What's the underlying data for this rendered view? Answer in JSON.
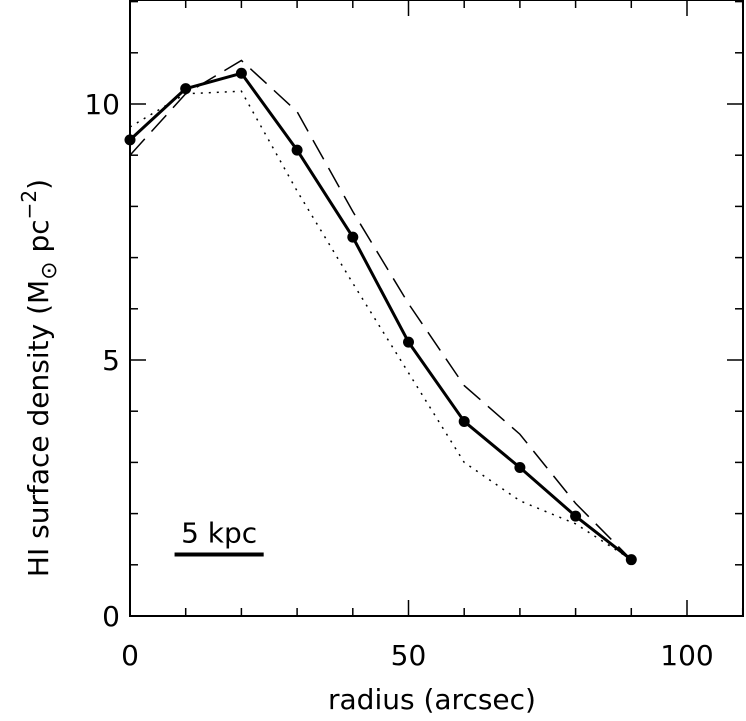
{
  "chart_data": {
    "type": "line",
    "xlabel": "radius (arcsec)",
    "ylabel_main": "HI surface density (M",
    "ylabel_unit": " pc",
    "ylabel_exp": "−2",
    "ylabel_close": ")",
    "xlim": [
      0,
      110
    ],
    "ylim": [
      0,
      12
    ],
    "x_ticks": [
      0,
      50,
      100
    ],
    "y_ticks": [
      0,
      5,
      10
    ],
    "x_minor_step": 10,
    "y_minor_step": 1,
    "series": [
      {
        "style": "solid-with-markers",
        "x": [
          0,
          10,
          20,
          30,
          40,
          50,
          60,
          70,
          80,
          90
        ],
        "y": [
          9.3,
          10.3,
          10.6,
          9.1,
          7.4,
          5.35,
          3.8,
          2.9,
          1.95,
          1.1
        ]
      },
      {
        "style": "dashed",
        "x": [
          0,
          10,
          20,
          30,
          40,
          50,
          60,
          70,
          80,
          90
        ],
        "y": [
          9.0,
          10.2,
          10.85,
          9.85,
          7.9,
          6.1,
          4.5,
          3.55,
          2.2,
          1.1
        ]
      },
      {
        "style": "dotted",
        "x": [
          0,
          10,
          20,
          30,
          40,
          50,
          60,
          70,
          80,
          90
        ],
        "y": [
          9.55,
          10.2,
          10.25,
          8.3,
          6.5,
          4.75,
          3.0,
          2.25,
          1.8,
          1.1
        ]
      }
    ],
    "scale_bar": {
      "label": "5 kpc",
      "x_start": 8,
      "x_end": 24,
      "y": 1.2
    }
  }
}
